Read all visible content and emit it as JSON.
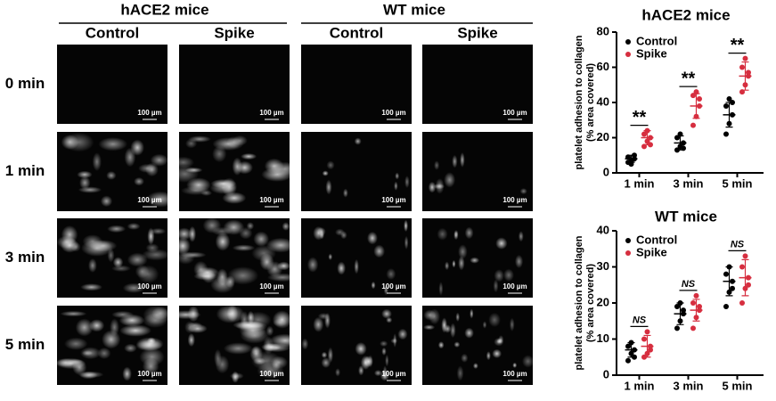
{
  "figure": {
    "groups": [
      "hACE2 mice",
      "WT mice"
    ],
    "columns": [
      "Control",
      "Spike",
      "Control",
      "Spike"
    ],
    "rows": [
      "0 min",
      "1 min",
      "3 min",
      "5 min"
    ],
    "scale_bar": "100 µm"
  },
  "chart_data": [
    {
      "type": "dot",
      "title": "hACE2 mice",
      "y_label": [
        "platelet adhesion to collagen",
        "(% area covered)"
      ],
      "categories": [
        "1 min",
        "3 min",
        "5 min"
      ],
      "ylim": [
        0,
        80
      ],
      "yticks": [
        0,
        20,
        40,
        60,
        80
      ],
      "annotations": [
        "**",
        "**",
        "**"
      ],
      "series": [
        {
          "name": "Control",
          "color": "#000000",
          "values": [
            [
              6,
              7,
              8,
              9,
              5,
              10
            ],
            [
              13,
              15,
              17,
              20,
              22,
              14
            ],
            [
              22,
              28,
              33,
              38,
              42,
              40
            ]
          ],
          "mean": [
            8,
            17,
            33
          ],
          "sd": [
            2,
            4,
            7
          ]
        },
        {
          "name": "Spike",
          "color": "#d62e3f",
          "values": [
            [
              15,
              18,
              20,
              22,
              24,
              16
            ],
            [
              27,
              32,
              38,
              44,
              46,
              42
            ],
            [
              46,
              50,
              55,
              60,
              65,
              57
            ]
          ],
          "mean": [
            20,
            38,
            55
          ],
          "sd": [
            4,
            7,
            8
          ]
        }
      ]
    },
    {
      "type": "dot",
      "title": "WT mice",
      "y_label": [
        "platelet adhesion to collagen",
        "(% area covered)"
      ],
      "categories": [
        "1 min",
        "3 min",
        "5 min"
      ],
      "ylim": [
        0,
        40
      ],
      "yticks": [
        0,
        10,
        20,
        30,
        40
      ],
      "annotations": [
        "NS",
        "NS",
        "NS"
      ],
      "series": [
        {
          "name": "Control",
          "color": "#000000",
          "values": [
            [
              4,
              6,
              7,
              8,
              9,
              5
            ],
            [
              13,
              15,
              17,
              19,
              20,
              18
            ],
            [
              19,
              23,
              26,
              28,
              30,
              24
            ]
          ],
          "mean": [
            7,
            17,
            26
          ],
          "sd": [
            2,
            3,
            4
          ]
        },
        {
          "name": "Spike",
          "color": "#d62e3f",
          "values": [
            [
              5,
              6,
              8,
              10,
              12,
              7
            ],
            [
              13,
              16,
              18,
              20,
              22,
              19
            ],
            [
              20,
              24,
              27,
              30,
              33,
              25
            ]
          ],
          "mean": [
            8,
            18,
            27
          ],
          "sd": [
            3,
            3,
            5
          ]
        }
      ]
    }
  ]
}
